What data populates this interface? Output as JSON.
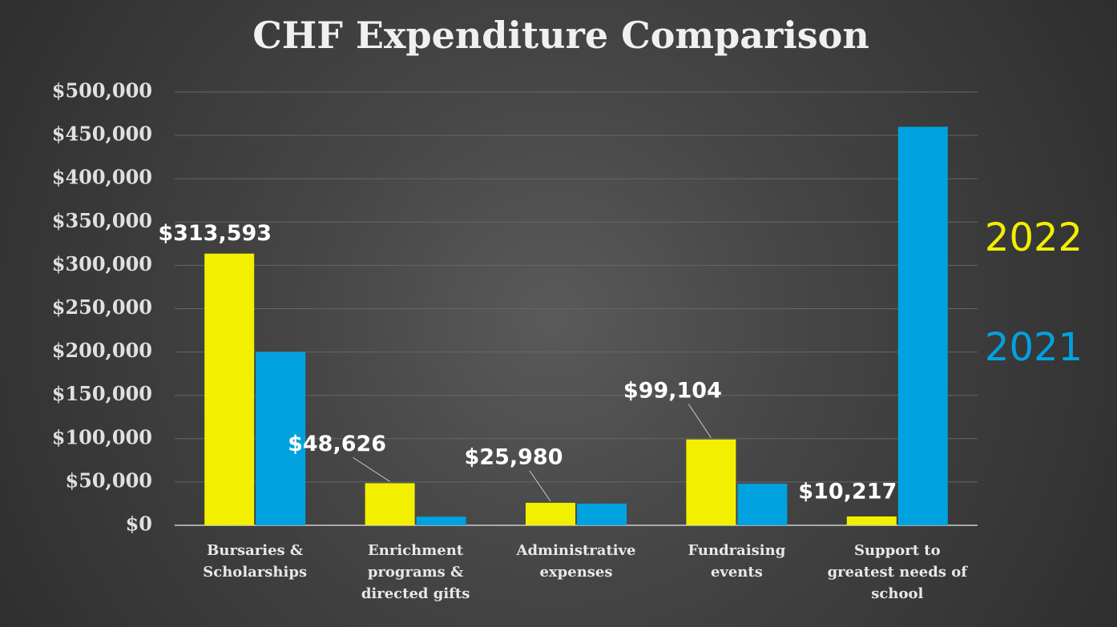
{
  "chart_data": {
    "type": "bar",
    "title": "CHF Expenditure Comparison",
    "categories": [
      "Bursaries & Scholarships",
      "Enrichment programs & directed gifts",
      "Administrative expenses",
      "Fundraising events",
      "Support to greatest needs of school"
    ],
    "series": [
      {
        "name": "2022",
        "color": "#f2ef00",
        "values": [
          313593,
          48626,
          25980,
          99104,
          10217
        ],
        "value_labels": [
          "$313,593",
          "$48,626",
          "$25,980",
          "$99,104",
          "$10,217"
        ]
      },
      {
        "name": "2021",
        "color": "#00a2e0",
        "values": [
          200000,
          10000,
          25000,
          48000,
          460000
        ]
      }
    ],
    "ylim": [
      0,
      500000
    ],
    "yticks": [
      {
        "value": 0,
        "label": "$0"
      },
      {
        "value": 50000,
        "label": "$50,000"
      },
      {
        "value": 100000,
        "label": "$100,000"
      },
      {
        "value": 150000,
        "label": "$150,000"
      },
      {
        "value": 200000,
        "label": "$200,000"
      },
      {
        "value": 250000,
        "label": "$250,000"
      },
      {
        "value": 300000,
        "label": "$300,000"
      },
      {
        "value": 350000,
        "label": "$350,000"
      },
      {
        "value": 400000,
        "label": "$400,000"
      },
      {
        "value": 450000,
        "label": "$450,000"
      },
      {
        "value": 500000,
        "label": "$500,000"
      }
    ],
    "grid": true
  }
}
